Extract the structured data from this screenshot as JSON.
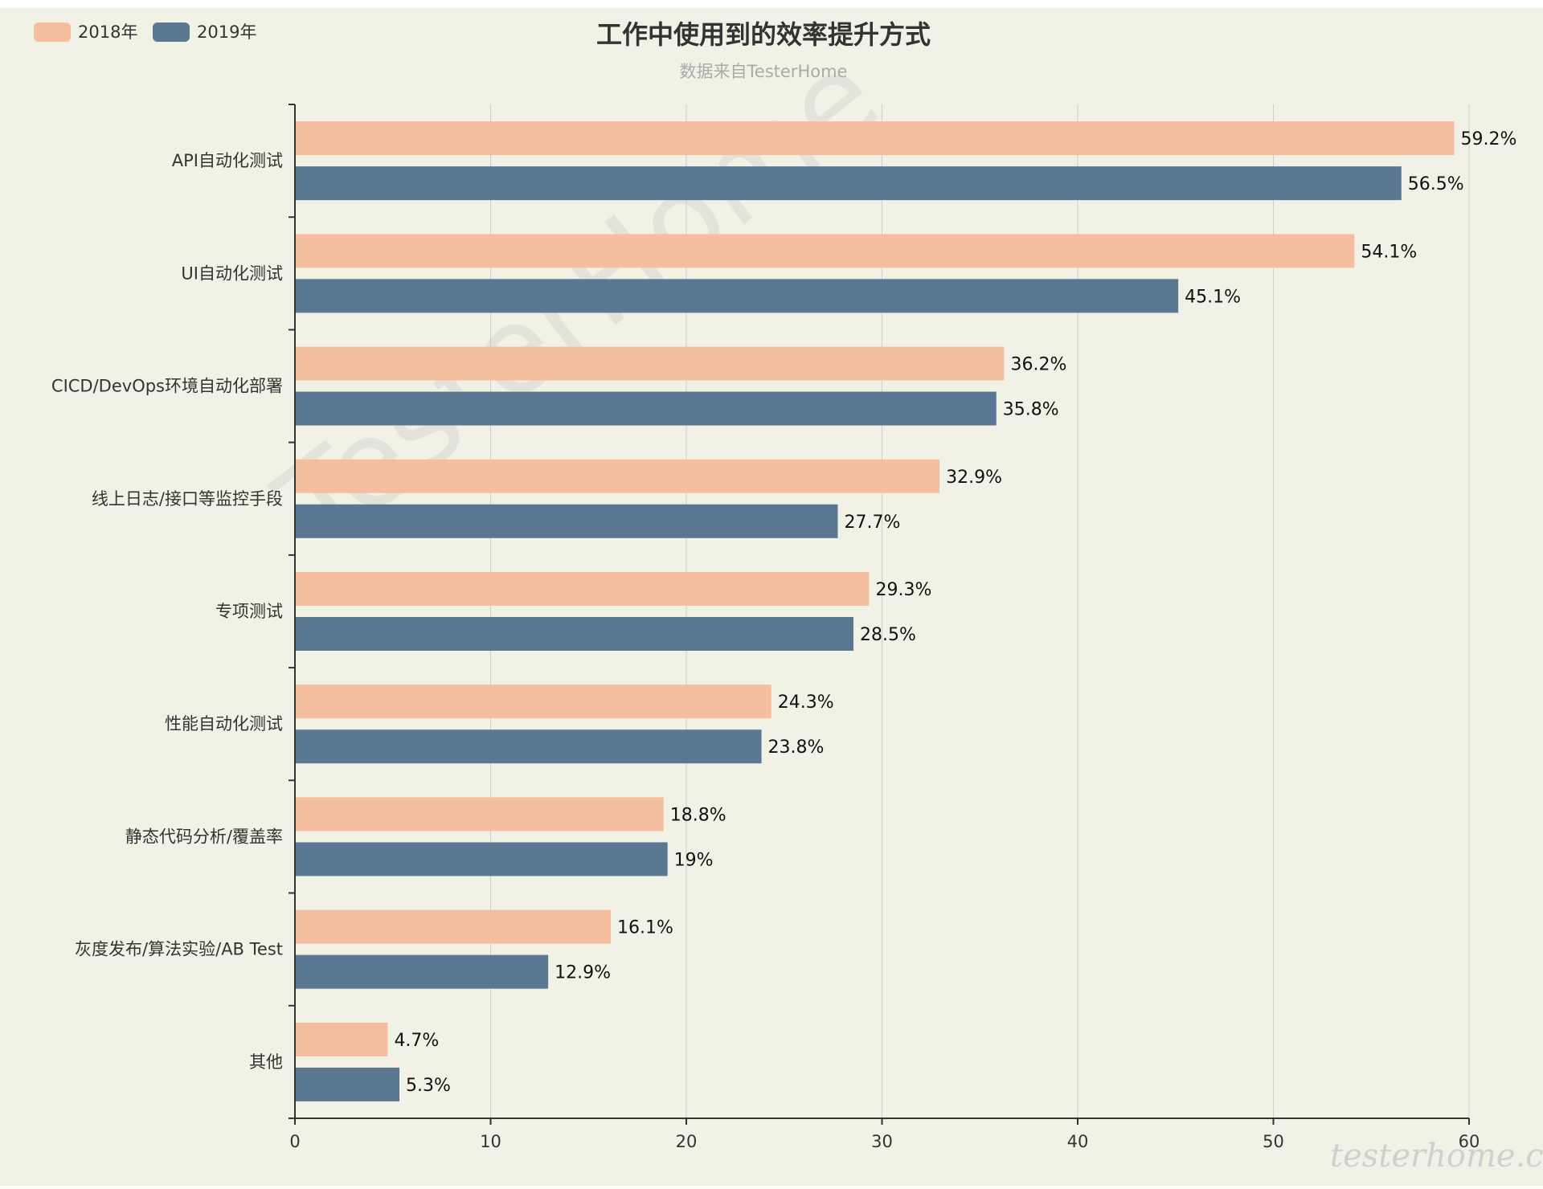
{
  "title": "工作中使用到的效率提升方式",
  "subtitle": "数据来自TesterHome",
  "watermark": "TesterHome",
  "corner_watermark": "testerhome.com",
  "colors": {
    "background": "#f2f1e6",
    "grid": "#cccccc",
    "axis": "#333333"
  },
  "legend": [
    {
      "label": "2018年",
      "color": "#f5bf9f"
    },
    {
      "label": "2019年",
      "color": "#5b7893"
    }
  ],
  "chart_data": {
    "type": "bar",
    "orientation": "horizontal",
    "title": "工作中使用到的效率提升方式",
    "subtitle": "数据来自TesterHome",
    "categories": [
      "API自动化测试",
      "UI自动化测试",
      "CICD/DevOps环境自动化部署",
      "线上日志/接口等监控手段",
      "专项测试",
      "性能自动化测试",
      "静态代码分析/覆盖率",
      "灰度发布/算法实验/AB Test",
      "其他"
    ],
    "series": [
      {
        "name": "2018年",
        "color": "#f5bf9f",
        "values": [
          59.2,
          54.1,
          36.2,
          32.9,
          29.3,
          24.3,
          18.8,
          16.1,
          4.7
        ],
        "labels": [
          "59.2%",
          "54.1%",
          "36.2%",
          "32.9%",
          "29.3%",
          "24.3%",
          "18.8%",
          "16.1%",
          "4.7%"
        ]
      },
      {
        "name": "2019年",
        "color": "#5b7893",
        "values": [
          56.5,
          45.1,
          35.8,
          27.7,
          28.5,
          23.8,
          19,
          12.9,
          5.3
        ],
        "labels": [
          "56.5%",
          "45.1%",
          "35.8%",
          "27.7%",
          "28.5%",
          "23.8%",
          "19%",
          "12.9%",
          "5.3%"
        ]
      }
    ],
    "xlim": [
      0,
      60
    ],
    "x_ticks": [
      "0",
      "10",
      "20",
      "30",
      "40",
      "50",
      "60"
    ],
    "xlabel": "",
    "ylabel": "",
    "grid": true,
    "legend_position": "top-left"
  }
}
